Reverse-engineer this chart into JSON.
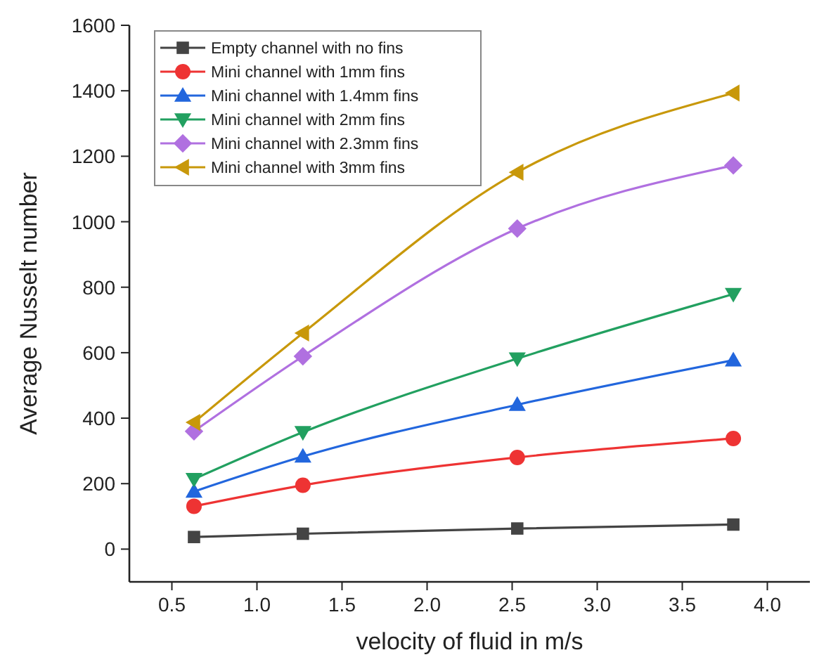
{
  "chart_data": {
    "type": "line",
    "xlabel": "velocity of fluid in m/s",
    "ylabel": "Average Nusselt number",
    "x": [
      0.63,
      1.27,
      2.53,
      3.8
    ],
    "series": [
      {
        "name": "Empty channel with no fins",
        "color": "#444444",
        "marker": "square",
        "values": [
          37,
          47,
          63,
          75
        ]
      },
      {
        "name": "Mini channel with 1mm fins",
        "color": "#ee3333",
        "marker": "circle",
        "values": [
          131,
          195,
          280,
          338
        ]
      },
      {
        "name": "Mini channel with 1.4mm fins",
        "color": "#2266dd",
        "marker": "triangle",
        "values": [
          176,
          283,
          441,
          577
        ]
      },
      {
        "name": "Mini channel with 2mm fins",
        "color": "#22a060",
        "marker": "triangle-down",
        "values": [
          214,
          357,
          582,
          779
        ]
      },
      {
        "name": "Mini channel with 2.3mm fins",
        "color": "#b070e0",
        "marker": "diamond",
        "values": [
          360,
          589,
          979,
          1172
        ]
      },
      {
        "name": "Mini channel with 3mm fins",
        "color": "#c8980a",
        "marker": "triangle-left",
        "values": [
          387,
          660,
          1151,
          1393
        ]
      }
    ],
    "xlim": [
      0.25,
      4.25
    ],
    "xticks": [
      {
        "value": 0.5,
        "label": "0.5"
      },
      {
        "value": 1,
        "label": "1.0"
      },
      {
        "value": 1.5,
        "label": "1.5"
      },
      {
        "value": 2,
        "label": "2.0"
      },
      {
        "value": 2.5,
        "label": "2.5"
      },
      {
        "value": 3,
        "label": "3.0"
      },
      {
        "value": 3.5,
        "label": "3.5"
      },
      {
        "value": 4,
        "label": "4.0"
      }
    ],
    "ylim": [
      -100,
      1600
    ],
    "yticks": [
      0,
      200,
      400,
      600,
      800,
      1000,
      1200,
      1400,
      1600
    ],
    "grid": false,
    "legend": "top left",
    "line_style": "solid"
  }
}
